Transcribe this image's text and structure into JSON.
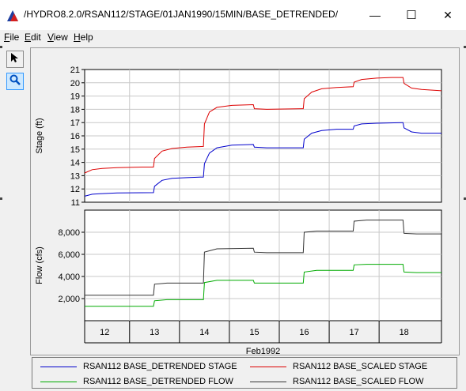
{
  "window": {
    "title": "/HYDRO8.2.0/RSAN112/STAGE/01JAN1990/15MIN/BASE_DETRENDED/",
    "minimize_glyph": "—",
    "maximize_glyph": "☐",
    "close_glyph": "✕"
  },
  "menu": {
    "items": [
      {
        "label": "File",
        "mnemonic": "F"
      },
      {
        "label": "Edit",
        "mnemonic": "E"
      },
      {
        "label": "View",
        "mnemonic": "V"
      },
      {
        "label": "Help",
        "mnemonic": "H"
      }
    ]
  },
  "toolbar": {
    "tools": [
      "pointer-icon",
      "zoom-icon"
    ],
    "active_color": "#cce8ff"
  },
  "chart_data": [
    {
      "type": "line",
      "ylabel": "Stage (ft)",
      "ylim": [
        11,
        21
      ],
      "yticks": [
        11,
        12,
        13,
        14,
        15,
        16,
        17,
        18,
        19,
        20,
        21
      ],
      "xlim": [
        11.35,
        18.5
      ],
      "grid": true,
      "series": [
        {
          "name": "RSAN112 BASE_SCALED STAGE",
          "color": "#dd0000",
          "points": [
            [
              11.35,
              13.2
            ],
            [
              11.5,
              13.45
            ],
            [
              11.7,
              13.55
            ],
            [
              12.0,
              13.6
            ],
            [
              12.5,
              13.65
            ],
            [
              12.73,
              13.65
            ],
            [
              12.75,
              14.3
            ],
            [
              12.9,
              14.85
            ],
            [
              13.1,
              15.05
            ],
            [
              13.4,
              15.15
            ],
            [
              13.73,
              15.2
            ],
            [
              13.75,
              16.9
            ],
            [
              13.85,
              17.8
            ],
            [
              14.0,
              18.15
            ],
            [
              14.3,
              18.3
            ],
            [
              14.73,
              18.35
            ],
            [
              14.75,
              18.05
            ],
            [
              15.0,
              18.0
            ],
            [
              15.73,
              18.05
            ],
            [
              15.75,
              18.8
            ],
            [
              15.9,
              19.3
            ],
            [
              16.1,
              19.55
            ],
            [
              16.4,
              19.65
            ],
            [
              16.73,
              19.7
            ],
            [
              16.75,
              20.05
            ],
            [
              16.9,
              20.25
            ],
            [
              17.2,
              20.35
            ],
            [
              17.5,
              20.4
            ],
            [
              17.73,
              20.4
            ],
            [
              17.75,
              19.95
            ],
            [
              17.9,
              19.6
            ],
            [
              18.1,
              19.5
            ],
            [
              18.5,
              19.4
            ]
          ]
        },
        {
          "name": "RSAN112 BASE_DETRENDED STAGE",
          "color": "#0000cc",
          "points": [
            [
              11.35,
              11.45
            ],
            [
              11.5,
              11.6
            ],
            [
              11.7,
              11.65
            ],
            [
              12.0,
              11.7
            ],
            [
              12.73,
              11.72
            ],
            [
              12.75,
              12.2
            ],
            [
              12.9,
              12.65
            ],
            [
              13.1,
              12.8
            ],
            [
              13.4,
              12.85
            ],
            [
              13.73,
              12.9
            ],
            [
              13.75,
              13.9
            ],
            [
              13.85,
              14.7
            ],
            [
              14.0,
              15.1
            ],
            [
              14.3,
              15.3
            ],
            [
              14.73,
              15.35
            ],
            [
              14.75,
              15.15
            ],
            [
              15.0,
              15.1
            ],
            [
              15.73,
              15.1
            ],
            [
              15.75,
              15.75
            ],
            [
              15.9,
              16.2
            ],
            [
              16.1,
              16.4
            ],
            [
              16.4,
              16.5
            ],
            [
              16.73,
              16.5
            ],
            [
              16.75,
              16.75
            ],
            [
              16.9,
              16.9
            ],
            [
              17.2,
              16.95
            ],
            [
              17.73,
              17.0
            ],
            [
              17.75,
              16.6
            ],
            [
              17.9,
              16.3
            ],
            [
              18.1,
              16.2
            ],
            [
              18.5,
              16.2
            ]
          ]
        }
      ]
    },
    {
      "type": "line",
      "ylabel": "Flow (cfs)",
      "xlabel": "Feb1992",
      "ylim": [
        0,
        10000
      ],
      "yticks": [
        2000,
        4000,
        6000,
        8000
      ],
      "ytick_labels": [
        "2,000",
        "4,000",
        "6,000",
        "8,000"
      ],
      "xlim": [
        11.35,
        18.5
      ],
      "xticks": [
        12,
        13,
        14,
        15,
        16,
        17,
        18
      ],
      "xtick_positions": [
        11.75,
        12.75,
        13.75,
        14.75,
        15.75,
        16.75,
        17.75
      ],
      "grid": true,
      "series": [
        {
          "name": "RSAN112 BASE_SCALED FLOW",
          "color": "#333333",
          "points": [
            [
              11.35,
              2300
            ],
            [
              12.73,
              2300
            ],
            [
              12.75,
              3300
            ],
            [
              13.0,
              3400
            ],
            [
              13.73,
              3400
            ],
            [
              13.75,
              6200
            ],
            [
              14.0,
              6500
            ],
            [
              14.73,
              6550
            ],
            [
              14.75,
              6200
            ],
            [
              15.0,
              6150
            ],
            [
              15.73,
              6150
            ],
            [
              15.75,
              8000
            ],
            [
              16.0,
              8100
            ],
            [
              16.73,
              8100
            ],
            [
              16.75,
              9000
            ],
            [
              17.0,
              9100
            ],
            [
              17.73,
              9100
            ],
            [
              17.75,
              7900
            ],
            [
              18.0,
              7850
            ],
            [
              18.5,
              7850
            ]
          ]
        },
        {
          "name": "RSAN112 BASE_DETRENDED FLOW",
          "color": "#00aa00",
          "points": [
            [
              11.35,
              1300
            ],
            [
              12.73,
              1300
            ],
            [
              12.75,
              1800
            ],
            [
              13.0,
              1900
            ],
            [
              13.73,
              1900
            ],
            [
              13.75,
              3450
            ],
            [
              14.0,
              3650
            ],
            [
              14.73,
              3650
            ],
            [
              14.75,
              3400
            ],
            [
              15.0,
              3400
            ],
            [
              15.73,
              3400
            ],
            [
              15.75,
              4400
            ],
            [
              16.0,
              4550
            ],
            [
              16.73,
              4550
            ],
            [
              16.75,
              5050
            ],
            [
              17.0,
              5100
            ],
            [
              17.73,
              5100
            ],
            [
              17.75,
              4400
            ],
            [
              18.0,
              4350
            ],
            [
              18.5,
              4350
            ]
          ]
        }
      ]
    }
  ],
  "legend": {
    "entries": [
      {
        "label": "RSAN112 BASE_DETRENDED STAGE",
        "color": "#0000cc"
      },
      {
        "label": "RSAN112 BASE_SCALED STAGE",
        "color": "#dd0000"
      },
      {
        "label": "RSAN112 BASE_DETRENDED FLOW",
        "color": "#00aa00"
      },
      {
        "label": "RSAN112 BASE_SCALED FLOW",
        "color": "#333333"
      }
    ]
  }
}
